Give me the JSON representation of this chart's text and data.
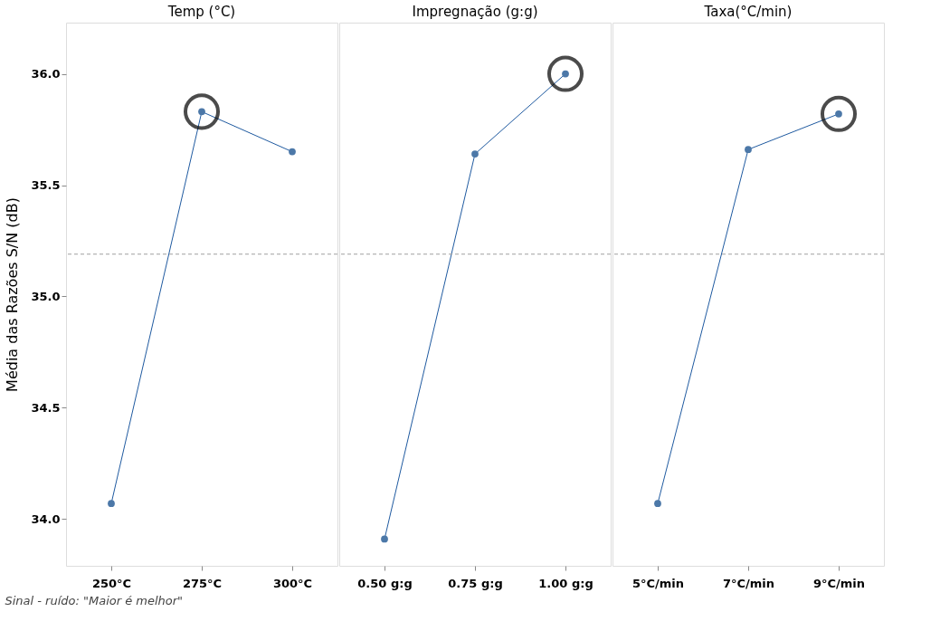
{
  "chart_data": [
    {
      "type": "line",
      "title": "Temp (°C)",
      "ylabel": "Média das Razões S/N (dB)",
      "categories": [
        "250°C",
        "275°C",
        "300°C"
      ],
      "ylim": [
        33.79,
        36.23
      ],
      "yticks": [
        {
          "value": 34,
          "label": "34.0"
        },
        34.5,
        {
          "value": 35,
          "label": "35.0"
        },
        35.5,
        {
          "value": 36,
          "label": "36.0"
        }
      ],
      "marker": "circle",
      "grid": false,
      "series": [
        {
          "color": "#1f5aa0",
          "values": [
            34.07,
            35.83,
            35.65
          ]
        },
        {
          "type": "scatter",
          "color": "#000000",
          "values": [
            null,
            35.83,
            null
          ]
        }
      ],
      "ref_lines": [
        {
          "axis": "y",
          "value": 35.19,
          "color": "#a0a0a0",
          "line_style": "dashed"
        }
      ],
      "annotations": [
        "Sinal - ruído: \"Maior é melhor\""
      ]
    },
    {
      "type": "line",
      "title": "Impregnação (g:g)",
      "categories": [
        "0.50 g:g",
        "0.75 g:g",
        "1.00 g:g"
      ],
      "ylim": [
        33.79,
        36.23
      ],
      "yticks": [
        34.0,
        34.5,
        35.0,
        35.5,
        36.0
      ],
      "tick_labels": "x",
      "marker": "circle",
      "grid": false,
      "series": [
        {
          "color": "#1f5aa0",
          "values": [
            33.91,
            35.64,
            36.0
          ]
        },
        {
          "type": "scatter",
          "color": "#000000",
          "values": [
            null,
            null,
            36.0
          ]
        }
      ],
      "ref_lines": [
        {
          "axis": "y",
          "value": 35.19,
          "color": "#a0a0a0",
          "line_style": "dashed"
        }
      ]
    },
    {
      "type": "line",
      "title": "Taxa(°C/min)",
      "categories": [
        "5°C/min",
        "7°C/min",
        "9°C/min"
      ],
      "ylim": [
        33.79,
        36.23
      ],
      "yticks": [
        34.0,
        34.5,
        35.0,
        35.5,
        36.0
      ],
      "tick_labels": "x",
      "marker": "circle",
      "grid": false,
      "series": [
        {
          "color": "#1f5aa0",
          "values": [
            34.07,
            35.66,
            35.82
          ]
        },
        {
          "type": "scatter",
          "color": "#000000",
          "values": [
            null,
            null,
            35.82
          ]
        }
      ],
      "ref_lines": [
        {
          "axis": "y",
          "value": 35.19,
          "color": "#a0a0a0",
          "line_style": "dashed"
        }
      ]
    }
  ]
}
